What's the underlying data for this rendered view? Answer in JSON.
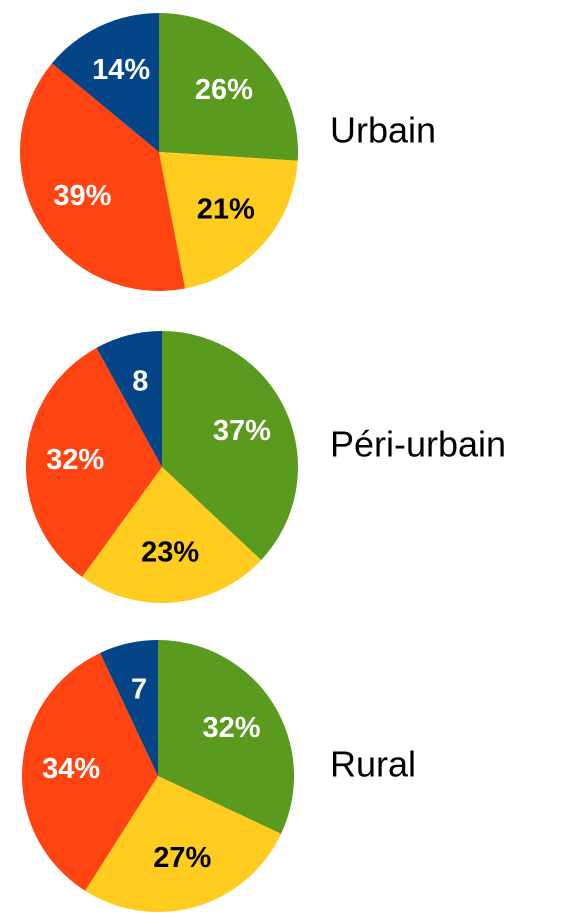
{
  "chart_data": [
    {
      "type": "pie",
      "title": "Urbain",
      "values": [
        26,
        21,
        39,
        14
      ],
      "value_labels": [
        "26%",
        "21%",
        "39%",
        "14%"
      ],
      "colors": [
        "#5a9a1e",
        "#ffcc1f",
        "#ff4411",
        "#034587"
      ],
      "label_colors": [
        "#ffffff",
        "#000000",
        "#ffffff",
        "#ffffff"
      ]
    },
    {
      "type": "pie",
      "title": "Péri-urbain",
      "values": [
        37,
        23,
        32,
        8
      ],
      "value_labels": [
        "37%",
        "23%",
        "32%",
        "8"
      ],
      "colors": [
        "#5a9a1e",
        "#ffcc1f",
        "#ff4411",
        "#034587"
      ],
      "label_colors": [
        "#ffffff",
        "#000000",
        "#ffffff",
        "#ffffff"
      ]
    },
    {
      "type": "pie",
      "title": "Rural",
      "values": [
        32,
        27,
        34,
        7
      ],
      "value_labels": [
        "32%",
        "27%",
        "34%",
        "7"
      ],
      "colors": [
        "#5a9a1e",
        "#ffcc1f",
        "#ff4411",
        "#034587"
      ],
      "label_colors": [
        "#ffffff",
        "#000000",
        "#ffffff",
        "#ffffff"
      ]
    }
  ]
}
